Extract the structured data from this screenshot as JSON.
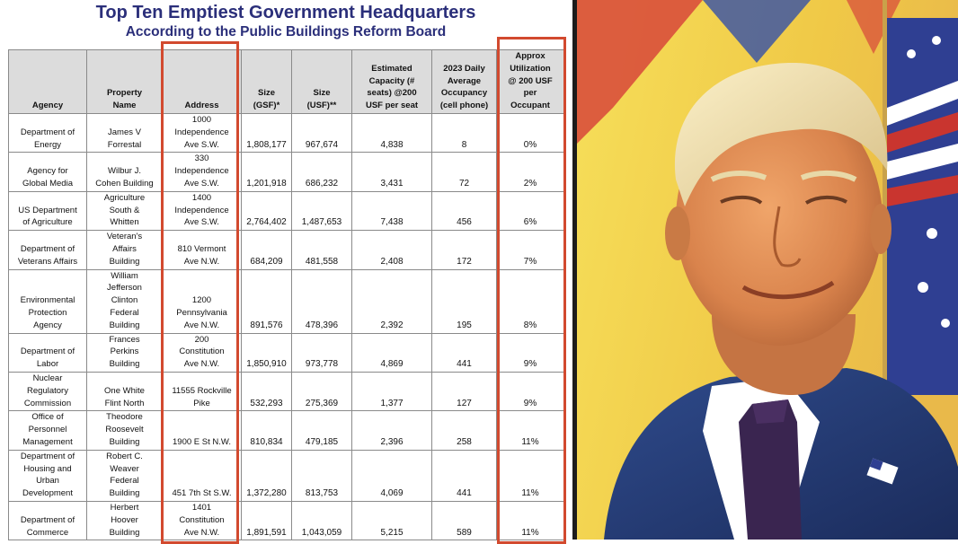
{
  "document": {
    "title": "Top Ten Emptiest Government Headquarters",
    "subtitle": "According to the Public Buildings Reform Board",
    "columns": [
      "Agency",
      "Property\nName",
      "Address",
      "Size\n(GSF)*",
      "Size\n(USF)**",
      "Estimated\nCapacity (#\nseats) @200\nUSF per seat",
      "2023 Daily\nAverage\nOccupancy\n(cell phone)",
      "Approx\nUtilization\n@ 200 USF\nper\nOccupant"
    ],
    "rows": [
      {
        "agency": "Department of\nEnergy",
        "property": "James V\nForrestal",
        "address": "1000\nIndependence\nAve S.W.",
        "gsf": "1,808,177",
        "usf": "967,674",
        "capacity": "4,838",
        "occupancy": "8",
        "utilization": "0%"
      },
      {
        "agency": "Agency for\nGlobal Media",
        "property": "Wilbur J.\nCohen Building",
        "address": "330\nIndependence\nAve S.W.",
        "gsf": "1,201,918",
        "usf": "686,232",
        "capacity": "3,431",
        "occupancy": "72",
        "utilization": "2%"
      },
      {
        "agency": "US Department\nof Agriculture",
        "property": "Agriculture\nSouth &\nWhitten",
        "address": "1400\nIndependence\nAve S.W.",
        "gsf": "2,764,402",
        "usf": "1,487,653",
        "capacity": "7,438",
        "occupancy": "456",
        "utilization": "6%"
      },
      {
        "agency": "Department of\nVeterans Affairs",
        "property": "Veteran's\nAffairs\nBuilding",
        "address": "810 Vermont\nAve N.W.",
        "gsf": "684,209",
        "usf": "481,558",
        "capacity": "2,408",
        "occupancy": "172",
        "utilization": "7%"
      },
      {
        "agency": "Environmental\nProtection\nAgency",
        "property": "William\nJefferson\nClinton\nFederal\nBuilding",
        "address": "1200\nPennsylvania\nAve N.W.",
        "gsf": "891,576",
        "usf": "478,396",
        "capacity": "2,392",
        "occupancy": "195",
        "utilization": "8%"
      },
      {
        "agency": "Department of\nLabor",
        "property": "Frances\nPerkins\nBuilding",
        "address": "200\nConstitution\nAve N.W.",
        "gsf": "1,850,910",
        "usf": "973,778",
        "capacity": "4,869",
        "occupancy": "441",
        "utilization": "9%"
      },
      {
        "agency": "Nuclear\nRegulatory\nCommission",
        "property": "One White\nFlint North",
        "address": "11555 Rockville\nPike",
        "gsf": "532,293",
        "usf": "275,369",
        "capacity": "1,377",
        "occupancy": "127",
        "utilization": "9%"
      },
      {
        "agency": "Office of\nPersonnel\nManagement",
        "property": "Theodore\nRoosevelt\nBuilding",
        "address": "1900 E St N.W.",
        "gsf": "810,834",
        "usf": "479,185",
        "capacity": "2,396",
        "occupancy": "258",
        "utilization": "11%"
      },
      {
        "agency": "Department of\nHousing and\nUrban\nDevelopment",
        "property": "Robert C.\nWeaver\nFederal\nBuilding",
        "address": "451 7th St S.W.",
        "gsf": "1,372,280",
        "usf": "813,753",
        "capacity": "4,069",
        "occupancy": "441",
        "utilization": "11%"
      },
      {
        "agency": "Department of\nCommerce",
        "property": "Herbert\nHoover\nBuilding",
        "address": "1401\nConstitution\nAve N.W.",
        "gsf": "1,891,591",
        "usf": "1,043,059",
        "capacity": "5,215",
        "occupancy": "589",
        "utilization": "11%"
      }
    ]
  },
  "colors": {
    "title": "#2b2f7a",
    "highlight": "#d24a2f",
    "header_bg": "#dcdcdc",
    "suit": "#243a73",
    "tie": "#3a2550",
    "background_yellow": "#f2d34a"
  }
}
